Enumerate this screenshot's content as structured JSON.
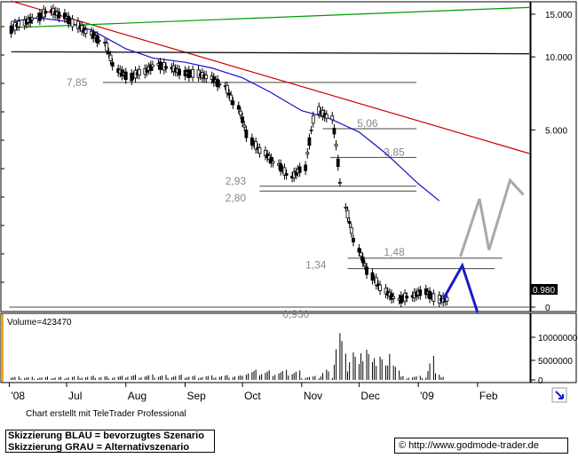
{
  "chart_data": [
    {
      "type": "candlestick",
      "title": "",
      "y_scale": "log",
      "y_range": [
        0.93,
        17.5
      ],
      "y_tick_labels": [
        "15.000",
        "10.000",
        "5.000",
        "0"
      ],
      "y_ticks": [
        15,
        10,
        5
      ],
      "x_tick_labels": [
        "'08",
        "Jul",
        "Aug",
        "Sep",
        "Oct",
        "Nov",
        "Dec",
        "'09",
        "Feb"
      ],
      "last_price_label": "0.980",
      "series": [
        {
          "name": "price",
          "color": "#000000",
          "x": [
            "2008-06-02",
            "2008-06-09",
            "2008-06-16",
            "2008-06-23",
            "2008-06-30",
            "2008-07-07",
            "2008-07-14",
            "2008-07-21",
            "2008-07-28",
            "2008-08-04",
            "2008-08-11",
            "2008-08-18",
            "2008-08-25",
            "2008-09-01",
            "2008-09-08",
            "2008-09-15",
            "2008-09-22",
            "2008-09-29",
            "2008-10-06",
            "2008-10-13",
            "2008-10-20",
            "2008-10-27",
            "2008-11-03",
            "2008-11-10",
            "2008-11-17",
            "2008-11-24",
            "2008-12-01",
            "2008-12-08",
            "2008-12-15",
            "2008-12-22",
            "2008-12-29",
            "2009-01-05",
            "2009-01-12"
          ],
          "y": [
            13.0,
            13.8,
            14.5,
            15.5,
            14.8,
            13.5,
            12.5,
            11.5,
            8.8,
            8.3,
            8.7,
            9.3,
            9.0,
            8.6,
            8.5,
            8.2,
            7.6,
            6.2,
            4.5,
            4.0,
            3.6,
            3.2,
            3.5,
            6.0,
            5.6,
            2.4,
            1.6,
            1.25,
            1.08,
            1.0,
            1.03,
            1.08,
            1.0
          ]
        },
        {
          "name": "moving_average",
          "color": "#1010c8",
          "x": [
            "2008-06-02",
            "2008-06-16",
            "2008-07-01",
            "2008-07-15",
            "2008-08-01",
            "2008-08-15",
            "2008-09-01",
            "2008-09-15",
            "2008-10-01",
            "2008-10-15",
            "2008-11-01",
            "2008-11-15",
            "2008-12-01",
            "2008-12-15",
            "2009-01-01",
            "2009-01-12"
          ],
          "y": [
            14.0,
            14.5,
            14.0,
            12.8,
            10.8,
            9.9,
            9.5,
            9.0,
            8.2,
            7.2,
            6.0,
            5.6,
            4.9,
            4.0,
            3.0,
            2.55
          ]
        },
        {
          "name": "volume",
          "color": "#000000",
          "x": [
            "2008-06",
            "2008-07",
            "2008-08",
            "2008-09",
            "2008-10",
            "2008-11-14",
            "2008-11-21",
            "2008-11-28",
            "2008-12-05",
            "2008-12-12",
            "2008-12-19",
            "2009-01-09"
          ],
          "y": [
            500000,
            600000,
            800000,
            700000,
            1500000,
            2000000,
            10000000,
            6500000,
            8000000,
            7000000,
            5000000,
            4000000
          ]
        }
      ],
      "trendlines": [
        {
          "name": "resistance",
          "color": "#cc0000",
          "from": [
            "2008-06-02",
            17.0
          ],
          "to": [
            "2009-02-28",
            4.0
          ]
        },
        {
          "name": "support",
          "color": "#009900",
          "from": [
            "2008-06-02",
            13.2
          ],
          "to": [
            "2009-02-28",
            16.0
          ]
        },
        {
          "name": "horizontal",
          "color": "#000000",
          "from": [
            "2008-06-02",
            10.5
          ],
          "to": [
            "2009-02-28",
            10.3
          ]
        }
      ],
      "levels": [
        {
          "value": 7.85,
          "label": "7,85"
        },
        {
          "value": 5.06,
          "label": "5,06"
        },
        {
          "value": 3.85,
          "label": "3,85"
        },
        {
          "value": 2.93,
          "label": "2,93"
        },
        {
          "value": 2.8,
          "label": "2,80"
        },
        {
          "value": 1.48,
          "label": "1,48"
        },
        {
          "value": 1.34,
          "label": "1,34"
        },
        {
          "value": 0.93,
          "label": "0,930"
        }
      ],
      "scenarios": [
        {
          "name": "Skizzierung BLAU",
          "color": "#1a1acc",
          "y": [
            1.0,
            1.38,
            0.93
          ]
        },
        {
          "name": "Skizzierung GRAU",
          "color": "#a8a8a8",
          "y": [
            1.5,
            2.6,
            1.6,
            3.1,
            2.7
          ]
        }
      ],
      "volume_label": "Volume=423470",
      "volume_tick_labels": [
        "10000000",
        "5000000",
        "0"
      ]
    }
  ],
  "footer": {
    "credit": "Chart erstellt mit TeleTrader Professional",
    "legend_blue": "Skizzierung BLAU = bevorzugtes Szenario",
    "legend_grey": "Skizzierung GRAU = Alternativszenario",
    "copyright_symbol": "©",
    "source_url": "http://www.godmode-trader.de"
  }
}
